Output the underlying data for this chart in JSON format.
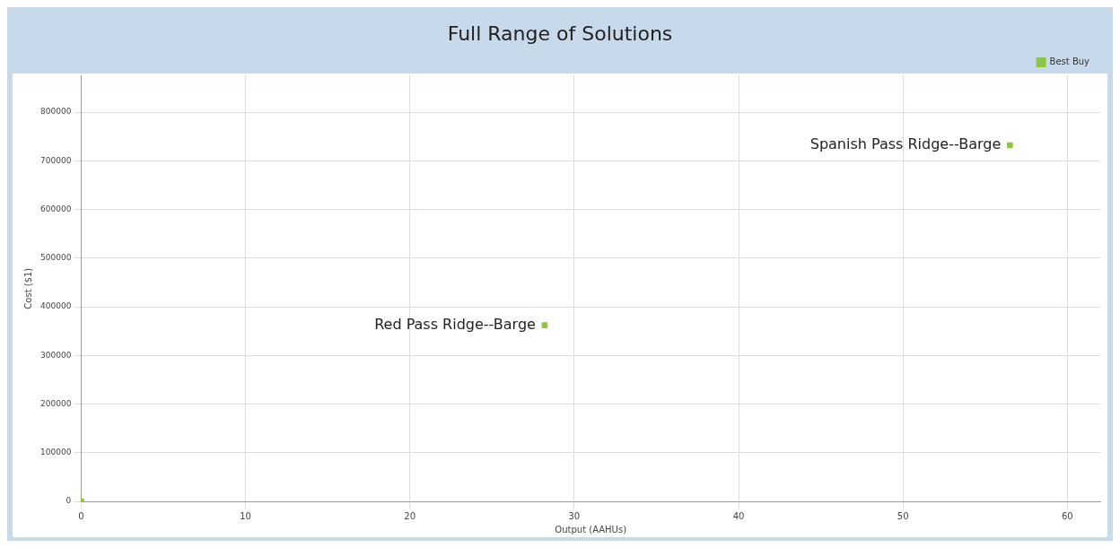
{
  "chart_data": {
    "type": "scatter",
    "title": "Full Range of Solutions",
    "xlabel": "Output (AAHUs)",
    "ylabel": "Cost ($1)",
    "series": [
      {
        "name": "Best Buy",
        "color": "#8dc63f",
        "x": [
          0,
          28.2,
          56.5
        ],
        "values": [
          0,
          362000,
          732000
        ]
      }
    ],
    "xlim": [
      0,
      62
    ],
    "xticks": [
      0,
      10,
      20,
      30,
      40,
      50,
      60
    ],
    "ylim": [
      0,
      875000
    ],
    "yticks": [
      0,
      100000,
      200000,
      300000,
      400000,
      500000,
      600000,
      700000,
      800000
    ],
    "grid": true,
    "legend": "top right",
    "marker": "square",
    "annotations": [
      {
        "text": "Red Pass Ridge--Barge",
        "x": 28.2,
        "y": 362000
      },
      {
        "text": "Spanish Pass Ridge--Barge",
        "x": 56.5,
        "y": 732000
      }
    ]
  }
}
